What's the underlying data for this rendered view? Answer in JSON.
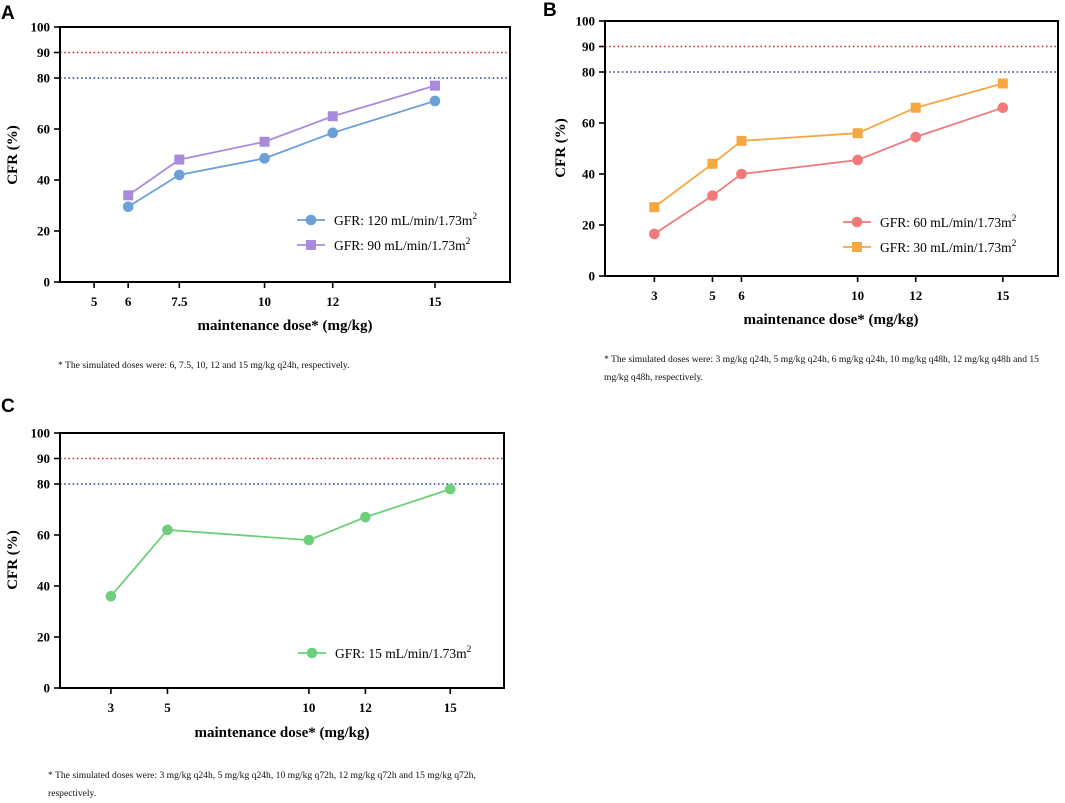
{
  "chart_data": [
    {
      "id": "A",
      "panel_label": "A",
      "type": "line",
      "xlabel": "maintenance dose* (mg/kg)",
      "ylabel": "CFR (%)",
      "xlim": [
        4,
        17.2
      ],
      "ylim": [
        0,
        100
      ],
      "x_ticks": [
        "5",
        "6",
        "7.5",
        "10",
        "12",
        "15"
      ],
      "x_tick_values": [
        5,
        6,
        7.5,
        10,
        12,
        15
      ],
      "y_ticks": [
        "0",
        "20",
        "40",
        "60",
        "80",
        "90",
        "100"
      ],
      "y_tick_values": [
        0,
        20,
        40,
        60,
        80,
        90,
        100
      ],
      "reference_lines": [
        {
          "y": 90,
          "color": "#cc3333"
        },
        {
          "y": 80,
          "color": "#2e3fa3"
        }
      ],
      "legend_position": "bottom-right",
      "series": [
        {
          "name": "GFR: 120 mL/min/1.73m",
          "sup": "2",
          "marker": "circle",
          "color": "#6a9fd8",
          "x": [
            6,
            7.5,
            10,
            12,
            15
          ],
          "values": [
            29.5,
            42,
            48.5,
            58.5,
            71
          ]
        },
        {
          "name": "GFR: 90 mL/min/1.73m",
          "sup": "2",
          "marker": "square",
          "color": "#a98bdc",
          "x": [
            6,
            7.5,
            10,
            12,
            15
          ],
          "values": [
            34,
            48,
            55,
            65,
            77
          ]
        }
      ],
      "footnote": "* The simulated doses were: 6, 7.5, 10, 12 and 15 mg/kg q24h, respectively."
    },
    {
      "id": "B",
      "panel_label": "B",
      "type": "line",
      "xlabel": "maintenance dose* (mg/kg)",
      "ylabel": "CFR (%)",
      "xlim": [
        1.3,
        16.9
      ],
      "ylim": [
        0,
        100
      ],
      "x_ticks": [
        "3",
        "5",
        "6",
        "10",
        "12",
        "15"
      ],
      "x_tick_values": [
        3,
        5,
        6,
        10,
        12,
        15
      ],
      "y_ticks": [
        "0",
        "20",
        "40",
        "60",
        "80",
        "90",
        "100"
      ],
      "y_tick_values": [
        0,
        20,
        40,
        60,
        80,
        90,
        100
      ],
      "reference_lines": [
        {
          "y": 90,
          "color": "#cc3333"
        },
        {
          "y": 80,
          "color": "#2e3fa3"
        }
      ],
      "legend_position": "bottom-right",
      "series": [
        {
          "name": "GFR: 60 mL/min/1.73m",
          "sup": "2",
          "marker": "circle",
          "color": "#f07a7a",
          "x": [
            3,
            5,
            6,
            10,
            12,
            15
          ],
          "values": [
            16.5,
            31.5,
            40,
            45.5,
            54.5,
            66
          ]
        },
        {
          "name": "GFR: 30 mL/min/1.73m",
          "sup": "2",
          "marker": "square",
          "color": "#f5a742",
          "x": [
            3,
            5,
            6,
            10,
            12,
            15
          ],
          "values": [
            27,
            44,
            53,
            56,
            66,
            75.5
          ]
        }
      ],
      "footnote": "* The simulated doses were: 3 mg/kg q24h, 5 mg/kg q24h, 6 mg/kg q24h, 10 mg/kg q48h, 12 mg/kg q48h and 15 mg/kg q48h, respectively."
    },
    {
      "id": "C",
      "panel_label": "C",
      "type": "line",
      "xlabel": "maintenance dose* (mg/kg)",
      "ylabel": "CFR (%)",
      "xlim": [
        1.2,
        16.9
      ],
      "ylim": [
        0,
        100
      ],
      "x_ticks": [
        "3",
        "5",
        "10",
        "12",
        "15"
      ],
      "x_tick_values": [
        3,
        5,
        10,
        12,
        15
      ],
      "y_ticks": [
        "0",
        "20",
        "40",
        "60",
        "80",
        "90",
        "100"
      ],
      "y_tick_values": [
        0,
        20,
        40,
        60,
        80,
        90,
        100
      ],
      "reference_lines": [
        {
          "y": 90,
          "color": "#cc3333"
        },
        {
          "y": 80,
          "color": "#2e3fa3"
        }
      ],
      "legend_position": "bottom-right",
      "series": [
        {
          "name": "GFR: 15 mL/min/1.73m",
          "sup": "2",
          "marker": "circle",
          "color": "#6ccf7a",
          "x": [
            3,
            5,
            10,
            12,
            15
          ],
          "values": [
            36,
            62,
            58,
            67,
            78
          ]
        }
      ],
      "footnote": "* The simulated doses were: 3 mg/kg q24h, 5 mg/kg q24h, 10 mg/kg q72h, 12 mg/kg q72h and 15 mg/kg q72h, respectively."
    }
  ]
}
